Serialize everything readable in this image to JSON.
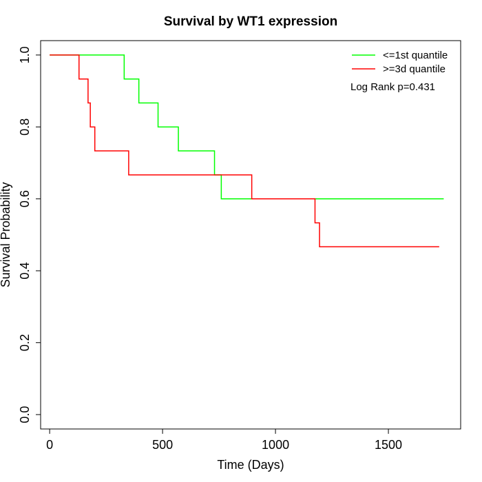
{
  "chart_data": {
    "type": "line",
    "title": "Survival by WT1 expression",
    "xlabel": "Time (Days)",
    "ylabel": "Survival Probability",
    "xlim": [
      -40,
      1820
    ],
    "ylim": [
      -0.04,
      1.04
    ],
    "x_ticks": [
      0,
      500,
      1000,
      1500
    ],
    "y_ticks": [
      0.0,
      0.2,
      0.4,
      0.6,
      0.8,
      1.0
    ],
    "x_tick_labels": [
      "0",
      "500",
      "1000",
      "1500"
    ],
    "y_tick_labels": [
      "0.0",
      "0.2",
      "0.4",
      "0.6",
      "0.8",
      "1.0"
    ],
    "grid": false,
    "legend_position": "top-right",
    "annotation": "Log Rank p=0.431",
    "series": [
      {
        "name": "<=1st quantile",
        "color": "#00ff00",
        "step": true,
        "points": [
          [
            0,
            1.0
          ],
          [
            330,
            1.0
          ],
          [
            330,
            0.9333
          ],
          [
            395,
            0.9333
          ],
          [
            395,
            0.8667
          ],
          [
            480,
            0.8667
          ],
          [
            480,
            0.8
          ],
          [
            570,
            0.8
          ],
          [
            570,
            0.7333
          ],
          [
            730,
            0.7333
          ],
          [
            730,
            0.6667
          ],
          [
            760,
            0.6667
          ],
          [
            760,
            0.6
          ],
          [
            1745,
            0.6
          ]
        ]
      },
      {
        "name": ">=3d quantile",
        "color": "#ff0000",
        "step": true,
        "points": [
          [
            0,
            1.0
          ],
          [
            130,
            1.0
          ],
          [
            130,
            0.9333
          ],
          [
            170,
            0.9333
          ],
          [
            170,
            0.8667
          ],
          [
            180,
            0.8667
          ],
          [
            180,
            0.8
          ],
          [
            200,
            0.8
          ],
          [
            200,
            0.7333
          ],
          [
            350,
            0.7333
          ],
          [
            350,
            0.6667
          ],
          [
            895,
            0.6667
          ],
          [
            895,
            0.6
          ],
          [
            1175,
            0.6
          ],
          [
            1175,
            0.5333
          ],
          [
            1195,
            0.5333
          ],
          [
            1195,
            0.4667
          ],
          [
            1725,
            0.4667
          ]
        ]
      }
    ]
  }
}
